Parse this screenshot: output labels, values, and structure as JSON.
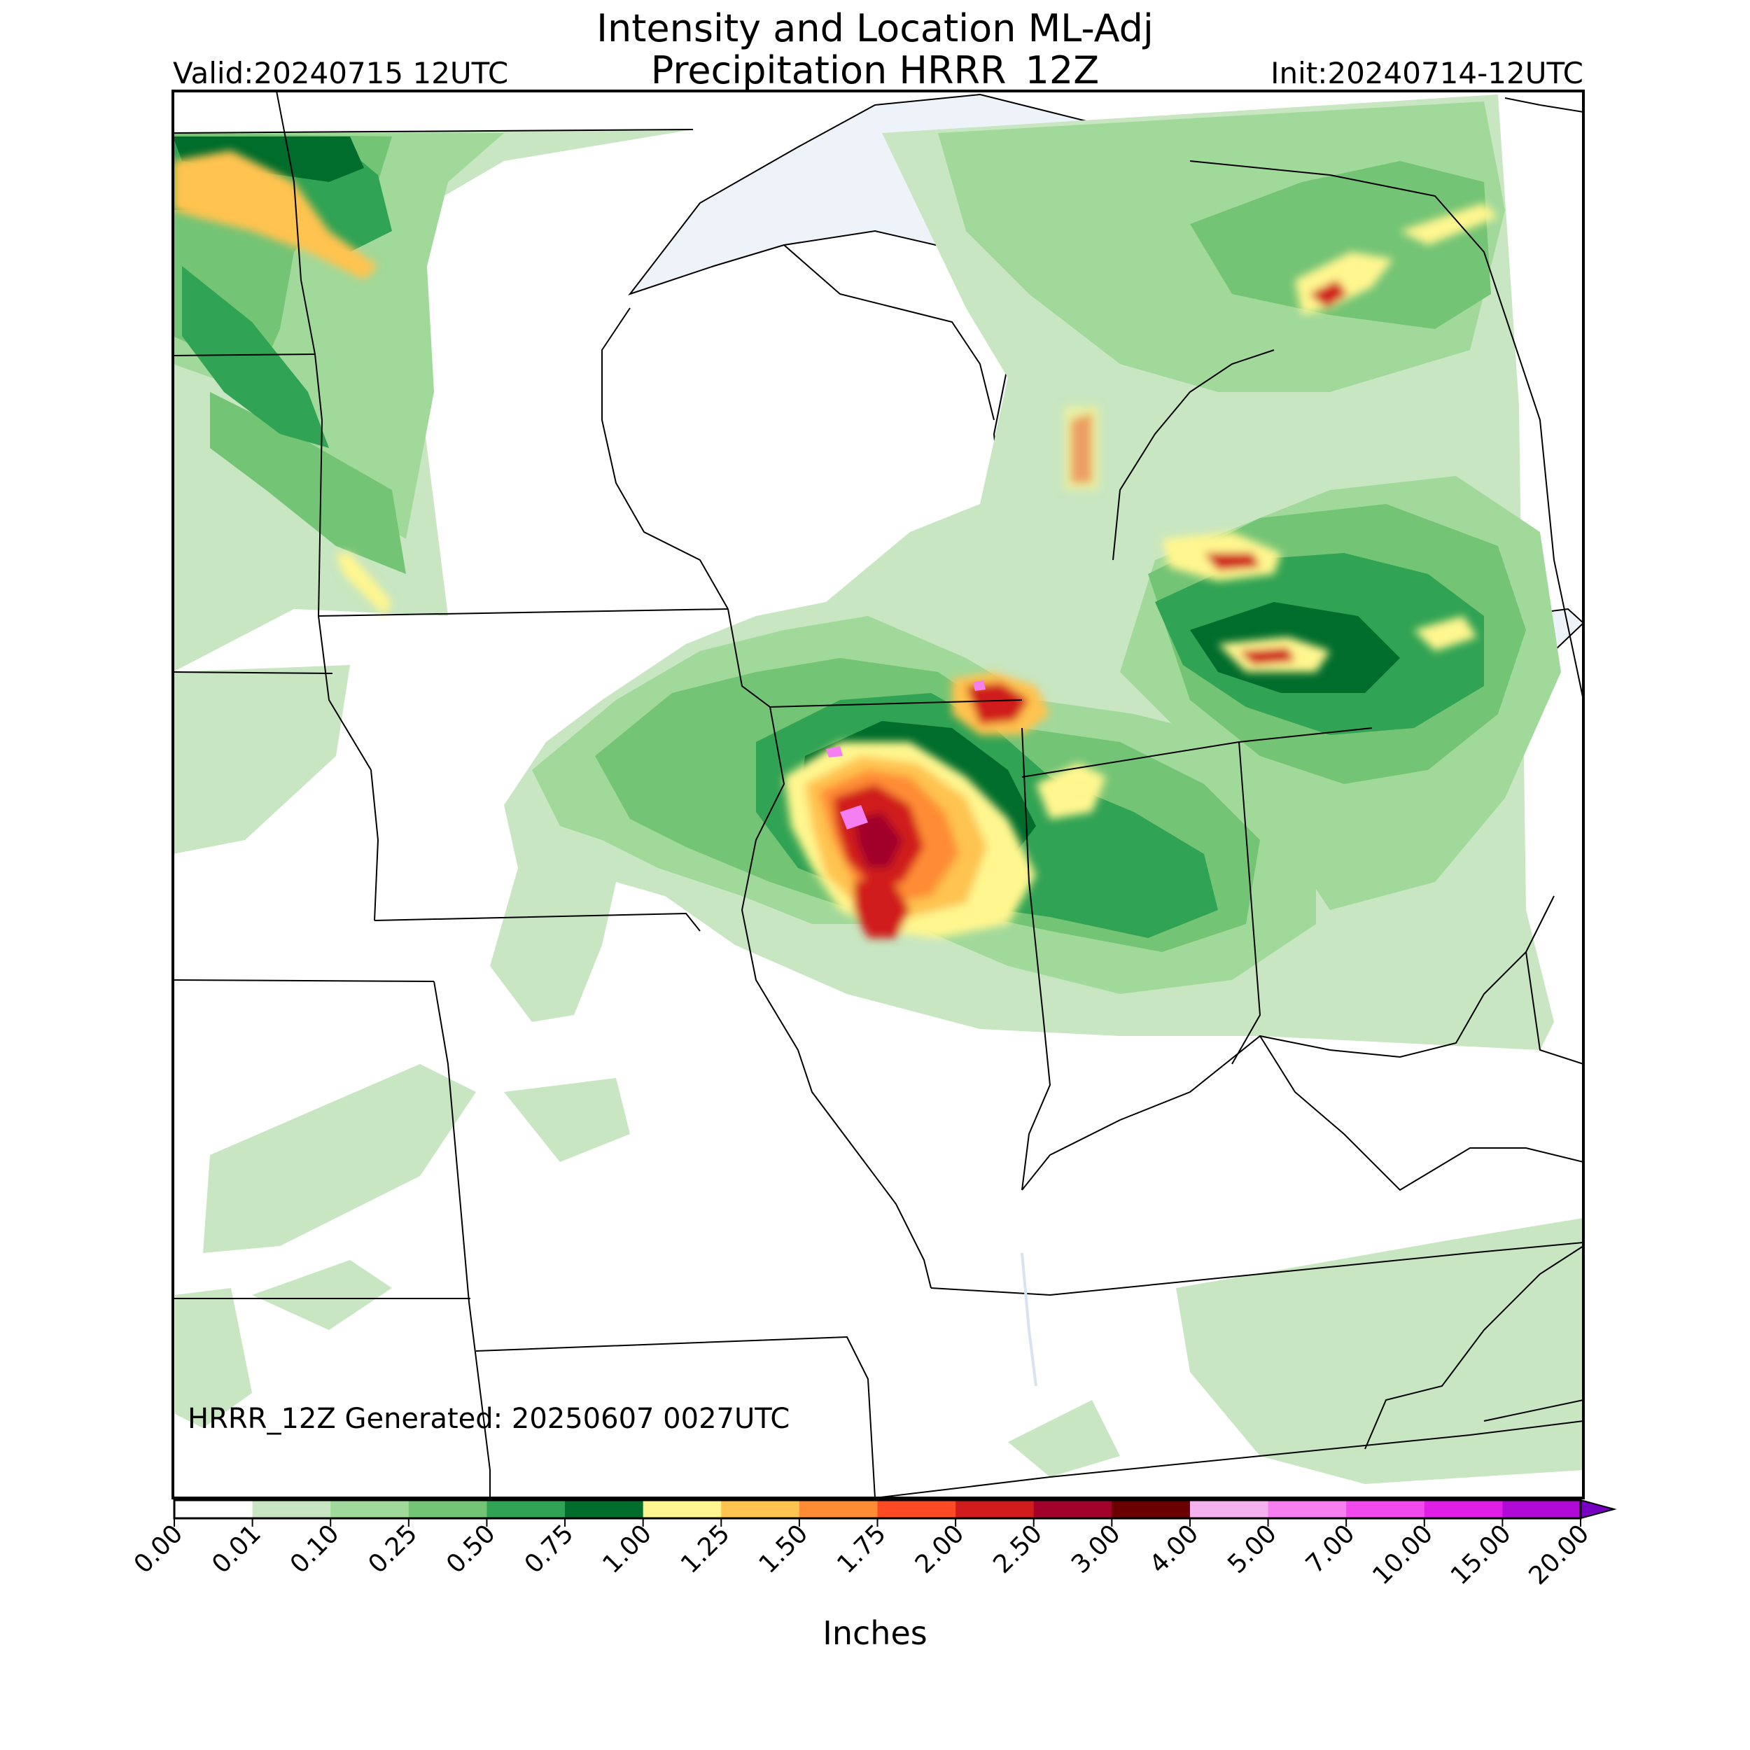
{
  "map": {
    "title_line1": "Intensity and Location ML-Adj",
    "title_line2": "Precipitation HRRR_12Z",
    "valid_text": "Valid:20240715 12UTC",
    "init_text": "Init:20240714-12UTC",
    "generated_text": "HRRR_12Z Generated: 20250607 0027UTC",
    "colorbar_label": "Inches"
  },
  "colorbar": {
    "ticks": [
      "0.00",
      "0.01",
      "0.10",
      "0.25",
      "0.50",
      "0.75",
      "1.00",
      "1.25",
      "1.50",
      "1.75",
      "2.00",
      "2.50",
      "3.00",
      "4.00",
      "5.00",
      "7.00",
      "10.00",
      "15.00",
      "20.00"
    ],
    "colors": [
      "#ffffff",
      "#c7e6c1",
      "#a1d99b",
      "#74c476",
      "#31a354",
      "#006d2c",
      "#fff68f",
      "#ffc34f",
      "#ff8c34",
      "#ff4a26",
      "#d01c1c",
      "#a1002b",
      "#6b0000",
      "#f5b2f1",
      "#f57ef0",
      "#f249ef",
      "#e01ee6",
      "#b20ad6",
      "#7800c2"
    ],
    "extend_arrow": true
  },
  "colors": {
    "water": "#eef3f9",
    "boundary": "#000000"
  }
}
